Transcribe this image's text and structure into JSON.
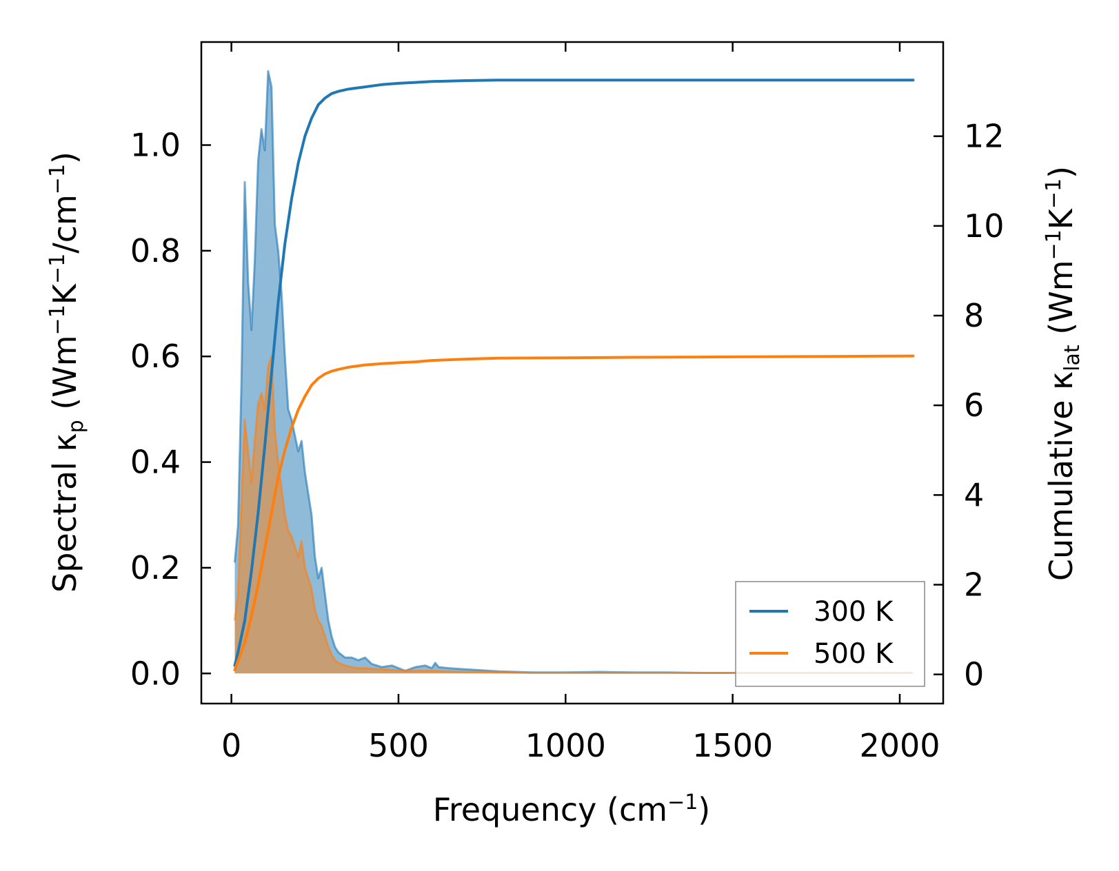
{
  "chart_data": {
    "type": "line",
    "xlabel": "Frequency (cm⁻¹)",
    "ylabel_left": "Spectral κₚ (Wm⁻¹K⁻¹/cm⁻¹)",
    "ylabel_right": "Cumulative κₗₐₜ (Wm⁻¹K⁻¹)",
    "xlim": [
      -90,
      2130
    ],
    "ylim_left": [
      -0.057,
      1.195
    ],
    "ylim_right": [
      -0.65,
      14.1
    ],
    "x_ticks": [
      0,
      500,
      1000,
      1500,
      2000
    ],
    "x_tick_labels": [
      "0",
      "500",
      "1000",
      "1500",
      "2000"
    ],
    "y_left_ticks": [
      0.0,
      0.2,
      0.4,
      0.6,
      0.8,
      1.0
    ],
    "y_left_tick_labels": [
      "0.0",
      "0.2",
      "0.4",
      "0.6",
      "0.8",
      "1.0"
    ],
    "y_right_ticks": [
      0,
      2,
      4,
      6,
      8,
      10,
      12
    ],
    "y_right_tick_labels": [
      "0",
      "2",
      "4",
      "6",
      "8",
      "10",
      "12"
    ],
    "legend": {
      "position": "lower-right",
      "entries": [
        "300 K",
        "500 K"
      ]
    },
    "colors": {
      "300 K": "#1f77b4",
      "500 K": "#ff7f0e"
    },
    "grid": false,
    "series": [
      {
        "name": "300 K",
        "kind": "spectral-fill",
        "axis": "left",
        "x": [
          10,
          20,
          30,
          40,
          50,
          60,
          70,
          80,
          90,
          100,
          110,
          120,
          130,
          140,
          150,
          160,
          170,
          180,
          190,
          200,
          210,
          220,
          230,
          240,
          250,
          260,
          270,
          280,
          290,
          300,
          310,
          320,
          340,
          360,
          380,
          400,
          420,
          450,
          480,
          500,
          520,
          550,
          580,
          600,
          610,
          620,
          650,
          700,
          750,
          800,
          850,
          900,
          1000,
          1100,
          1200,
          1300,
          1400,
          1500,
          1600,
          1700,
          1800,
          1900,
          2000,
          2040
        ],
        "y": [
          0.21,
          0.28,
          0.55,
          0.93,
          0.74,
          0.65,
          0.78,
          0.97,
          1.03,
          0.99,
          1.14,
          1.11,
          0.85,
          0.8,
          0.72,
          0.6,
          0.5,
          0.48,
          0.45,
          0.42,
          0.44,
          0.38,
          0.34,
          0.3,
          0.22,
          0.18,
          0.2,
          0.15,
          0.1,
          0.07,
          0.05,
          0.04,
          0.03,
          0.03,
          0.025,
          0.03,
          0.018,
          0.012,
          0.015,
          0.01,
          0.005,
          0.012,
          0.015,
          0.01,
          0.02,
          0.012,
          0.01,
          0.008,
          0.006,
          0.004,
          0.003,
          0.002,
          0.002,
          0.003,
          0.002,
          0.002,
          0.001,
          0.001,
          0.001,
          0.001,
          0.001,
          0.001,
          0.001,
          0.001
        ]
      },
      {
        "name": "500 K",
        "kind": "spectral-fill",
        "axis": "left",
        "x": [
          10,
          20,
          30,
          40,
          50,
          60,
          70,
          80,
          90,
          100,
          110,
          120,
          130,
          140,
          150,
          160,
          170,
          180,
          190,
          200,
          210,
          220,
          230,
          240,
          250,
          260,
          270,
          280,
          290,
          300,
          310,
          320,
          340,
          360,
          380,
          400,
          450,
          500,
          550,
          600,
          650,
          700,
          800,
          900,
          1000,
          1100,
          1200,
          1400,
          1600,
          1800,
          2000,
          2040
        ],
        "y": [
          0.1,
          0.15,
          0.32,
          0.48,
          0.42,
          0.36,
          0.44,
          0.51,
          0.53,
          0.5,
          0.58,
          0.6,
          0.46,
          0.4,
          0.35,
          0.3,
          0.27,
          0.26,
          0.24,
          0.22,
          0.25,
          0.2,
          0.18,
          0.16,
          0.12,
          0.1,
          0.09,
          0.07,
          0.05,
          0.035,
          0.025,
          0.02,
          0.015,
          0.012,
          0.01,
          0.01,
          0.008,
          0.006,
          0.005,
          0.005,
          0.004,
          0.003,
          0.002,
          0.001,
          0.001,
          0.001,
          0.001,
          0.001,
          0.001,
          0.001,
          0.001,
          0.001
        ]
      },
      {
        "name": "300 K",
        "kind": "cumulative-line",
        "axis": "right",
        "x": [
          10,
          20,
          40,
          60,
          80,
          100,
          120,
          140,
          160,
          180,
          200,
          220,
          240,
          260,
          280,
          300,
          320,
          350,
          400,
          450,
          500,
          550,
          600,
          700,
          800,
          1000,
          1200,
          1500,
          1800,
          2040
        ],
        "y": [
          0.2,
          0.5,
          1.2,
          2.3,
          3.6,
          5.1,
          6.7,
          8.3,
          9.6,
          10.6,
          11.4,
          12.0,
          12.4,
          12.7,
          12.85,
          12.95,
          13.0,
          13.05,
          13.1,
          13.15,
          13.18,
          13.2,
          13.22,
          13.24,
          13.25,
          13.25,
          13.25,
          13.25,
          13.25,
          13.25
        ]
      },
      {
        "name": "500 K",
        "kind": "cumulative-line",
        "axis": "right",
        "x": [
          10,
          20,
          40,
          60,
          80,
          100,
          120,
          140,
          160,
          180,
          200,
          220,
          240,
          260,
          280,
          300,
          320,
          350,
          400,
          450,
          500,
          550,
          600,
          700,
          800,
          1000,
          1200,
          1500,
          1800,
          2040
        ],
        "y": [
          0.1,
          0.3,
          0.7,
          1.3,
          2.0,
          2.8,
          3.6,
          4.4,
          5.0,
          5.5,
          5.9,
          6.2,
          6.45,
          6.6,
          6.7,
          6.76,
          6.8,
          6.85,
          6.9,
          6.93,
          6.95,
          6.97,
          7.0,
          7.03,
          7.05,
          7.06,
          7.07,
          7.08,
          7.09,
          7.1
        ]
      }
    ]
  }
}
